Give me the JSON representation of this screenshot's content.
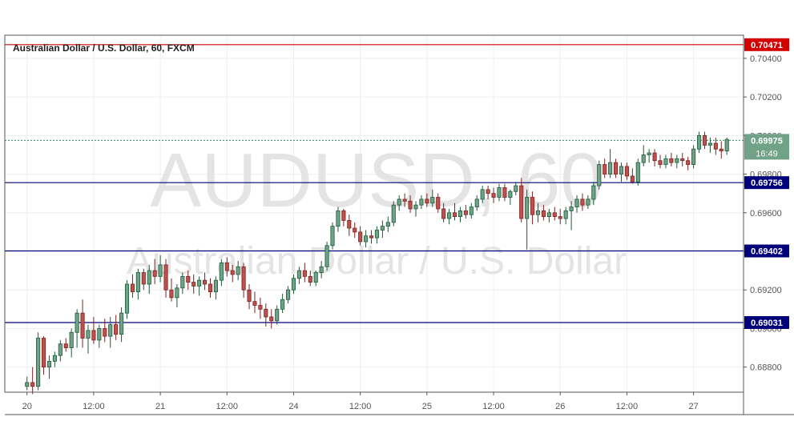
{
  "header": {
    "title": "Australian Dollar / U.S. Dollar, 60, FXCM"
  },
  "watermark": {
    "symbol": "AUDUSD, 60",
    "description": "Australian Dollar / U.S. Dollar"
  },
  "colors": {
    "up_fill": "#6fa287",
    "up_border": "#1e5a3a",
    "down_fill": "#c0504d",
    "down_border": "#7a2422",
    "resistance_line": "#d40000",
    "support_line": "#00007a",
    "price_line": "#2e8b57",
    "grid": "#eeeeee",
    "axis_text": "#555555",
    "watermark": "#e4e4e4"
  },
  "chart_data": {
    "type": "candlestick",
    "title": "Australian Dollar / U.S. Dollar, 60, FXCM",
    "ylim": [
      0.6867,
      0.7052
    ],
    "y_ticks": [
      "0.68800",
      "0.69000",
      "0.69200",
      "0.69400",
      "0.69600",
      "0.69800",
      "0.70000",
      "0.70200",
      "0.70400"
    ],
    "x_ticks": [
      "20",
      "12:00",
      "21",
      "12:00",
      "24",
      "12:00",
      "25",
      "12:00",
      "26",
      "12:00",
      "27"
    ],
    "x_tick_positions": [
      0,
      12,
      24,
      36,
      48,
      60,
      72,
      84,
      96,
      108,
      120
    ],
    "x_range": [
      -4,
      129
    ],
    "grid": true,
    "horizontal_lines": [
      {
        "value": 0.70471,
        "label": "0.70471",
        "kind": "resistance"
      },
      {
        "value": 0.69756,
        "label": "0.69756",
        "kind": "support"
      },
      {
        "value": 0.69402,
        "label": "0.69402",
        "kind": "support"
      },
      {
        "value": 0.69031,
        "label": "0.69031",
        "kind": "support"
      }
    ],
    "current_price": {
      "value": 0.69975,
      "label": "0.69975",
      "countdown": "16:49"
    },
    "ohlc": [
      [
        0.687,
        0.6875,
        0.6868,
        0.6872
      ],
      [
        0.6872,
        0.688,
        0.6866,
        0.687
      ],
      [
        0.687,
        0.6898,
        0.6868,
        0.6895
      ],
      [
        0.6895,
        0.6896,
        0.6876,
        0.688
      ],
      [
        0.688,
        0.6886,
        0.6874,
        0.6883
      ],
      [
        0.6883,
        0.6888,
        0.688,
        0.6886
      ],
      [
        0.6886,
        0.6894,
        0.6883,
        0.6892
      ],
      [
        0.6892,
        0.6895,
        0.6888,
        0.689
      ],
      [
        0.689,
        0.69,
        0.6885,
        0.6898
      ],
      [
        0.6898,
        0.691,
        0.689,
        0.6908
      ],
      [
        0.6908,
        0.6915,
        0.689,
        0.6895
      ],
      [
        0.6895,
        0.6902,
        0.6887,
        0.6899
      ],
      [
        0.6899,
        0.6906,
        0.6892,
        0.6894
      ],
      [
        0.6894,
        0.6902,
        0.689,
        0.69
      ],
      [
        0.69,
        0.6905,
        0.6893,
        0.6896
      ],
      [
        0.6896,
        0.6906,
        0.689,
        0.6902
      ],
      [
        0.6902,
        0.6907,
        0.6894,
        0.6897
      ],
      [
        0.6897,
        0.6911,
        0.6893,
        0.6908
      ],
      [
        0.6908,
        0.6925,
        0.6905,
        0.6923
      ],
      [
        0.6923,
        0.6928,
        0.6916,
        0.6919
      ],
      [
        0.6919,
        0.6931,
        0.6915,
        0.6929
      ],
      [
        0.6929,
        0.6931,
        0.692,
        0.6923
      ],
      [
        0.6923,
        0.6933,
        0.6918,
        0.693
      ],
      [
        0.693,
        0.6936,
        0.6923,
        0.6927
      ],
      [
        0.6927,
        0.6938,
        0.6924,
        0.6933
      ],
      [
        0.6933,
        0.6936,
        0.6916,
        0.692
      ],
      [
        0.692,
        0.6926,
        0.6914,
        0.6916
      ],
      [
        0.6916,
        0.6923,
        0.6911,
        0.6921
      ],
      [
        0.6921,
        0.6929,
        0.6918,
        0.6927
      ],
      [
        0.6927,
        0.693,
        0.692,
        0.6924
      ],
      [
        0.6924,
        0.6928,
        0.6918,
        0.6922
      ],
      [
        0.6922,
        0.6927,
        0.6917,
        0.6925
      ],
      [
        0.6925,
        0.6929,
        0.692,
        0.6923
      ],
      [
        0.6923,
        0.6926,
        0.6916,
        0.6919
      ],
      [
        0.6919,
        0.6927,
        0.6915,
        0.6925
      ],
      [
        0.6925,
        0.6936,
        0.6922,
        0.6934
      ],
      [
        0.6934,
        0.6937,
        0.6927,
        0.693
      ],
      [
        0.693,
        0.6933,
        0.6924,
        0.6928
      ],
      [
        0.6928,
        0.6935,
        0.6925,
        0.6932
      ],
      [
        0.6932,
        0.6934,
        0.6916,
        0.692
      ],
      [
        0.692,
        0.6923,
        0.691,
        0.6914
      ],
      [
        0.6914,
        0.6919,
        0.6908,
        0.6912
      ],
      [
        0.6912,
        0.6916,
        0.6905,
        0.691
      ],
      [
        0.691,
        0.6913,
        0.6901,
        0.6906
      ],
      [
        0.6906,
        0.691,
        0.69,
        0.6904
      ],
      [
        0.6904,
        0.6912,
        0.6902,
        0.691
      ],
      [
        0.691,
        0.6918,
        0.6908,
        0.6915
      ],
      [
        0.6915,
        0.6922,
        0.6913,
        0.692
      ],
      [
        0.692,
        0.6928,
        0.6918,
        0.6926
      ],
      [
        0.6926,
        0.6932,
        0.6923,
        0.693
      ],
      [
        0.693,
        0.6934,
        0.6924,
        0.6927
      ],
      [
        0.6927,
        0.693,
        0.6922,
        0.6924
      ],
      [
        0.6924,
        0.693,
        0.6922,
        0.6929
      ],
      [
        0.6929,
        0.6935,
        0.6926,
        0.6932
      ],
      [
        0.6932,
        0.6945,
        0.693,
        0.6943
      ],
      [
        0.6943,
        0.6955,
        0.6941,
        0.6953
      ],
      [
        0.6953,
        0.6963,
        0.695,
        0.6961
      ],
      [
        0.6961,
        0.6962,
        0.6953,
        0.6956
      ],
      [
        0.6956,
        0.6959,
        0.6948,
        0.6952
      ],
      [
        0.6952,
        0.6955,
        0.6947,
        0.695
      ],
      [
        0.695,
        0.6953,
        0.6943,
        0.6945
      ],
      [
        0.6945,
        0.6951,
        0.6942,
        0.6948
      ],
      [
        0.6948,
        0.6951,
        0.6944,
        0.6947
      ],
      [
        0.6947,
        0.6953,
        0.6944,
        0.6951
      ],
      [
        0.6951,
        0.6956,
        0.6947,
        0.6953
      ],
      [
        0.6953,
        0.6958,
        0.695,
        0.6955
      ],
      [
        0.6955,
        0.6966,
        0.6953,
        0.6964
      ],
      [
        0.6964,
        0.6969,
        0.6961,
        0.6967
      ],
      [
        0.6967,
        0.697,
        0.6963,
        0.6966
      ],
      [
        0.6966,
        0.6969,
        0.696,
        0.6962
      ],
      [
        0.6962,
        0.6966,
        0.6958,
        0.6964
      ],
      [
        0.6964,
        0.6969,
        0.6962,
        0.6967
      ],
      [
        0.6967,
        0.697,
        0.6963,
        0.6965
      ],
      [
        0.6965,
        0.6972,
        0.6963,
        0.6968
      ],
      [
        0.6968,
        0.697,
        0.696,
        0.6962
      ],
      [
        0.6962,
        0.6965,
        0.6955,
        0.6957
      ],
      [
        0.6957,
        0.6962,
        0.6954,
        0.696
      ],
      [
        0.696,
        0.6965,
        0.6956,
        0.6958
      ],
      [
        0.6958,
        0.6963,
        0.6955,
        0.6961
      ],
      [
        0.6961,
        0.6964,
        0.6957,
        0.6959
      ],
      [
        0.6959,
        0.6965,
        0.6957,
        0.6963
      ],
      [
        0.6963,
        0.6969,
        0.6961,
        0.6967
      ],
      [
        0.6967,
        0.6974,
        0.6965,
        0.6972
      ],
      [
        0.6972,
        0.6974,
        0.6967,
        0.697
      ],
      [
        0.697,
        0.6973,
        0.6965,
        0.6968
      ],
      [
        0.6968,
        0.6975,
        0.6966,
        0.6973
      ],
      [
        0.6973,
        0.6975,
        0.6966,
        0.6968
      ],
      [
        0.6968,
        0.6972,
        0.6964,
        0.6971
      ],
      [
        0.6971,
        0.6976,
        0.6969,
        0.6974
      ],
      [
        0.6974,
        0.6978,
        0.6955,
        0.6957
      ],
      [
        0.6957,
        0.6972,
        0.6941,
        0.6968
      ],
      [
        0.6968,
        0.6971,
        0.6954,
        0.6959
      ],
      [
        0.6959,
        0.6965,
        0.6955,
        0.6961
      ],
      [
        0.6961,
        0.6964,
        0.6956,
        0.6958
      ],
      [
        0.6958,
        0.6962,
        0.6955,
        0.696
      ],
      [
        0.696,
        0.6963,
        0.6956,
        0.6958
      ],
      [
        0.6958,
        0.6962,
        0.6954,
        0.6957
      ],
      [
        0.6957,
        0.6963,
        0.6954,
        0.6961
      ],
      [
        0.6961,
        0.6966,
        0.6951,
        0.6963
      ],
      [
        0.6963,
        0.6969,
        0.696,
        0.6967
      ],
      [
        0.6967,
        0.697,
        0.6961,
        0.6964
      ],
      [
        0.6964,
        0.6969,
        0.6962,
        0.6967
      ],
      [
        0.6967,
        0.6976,
        0.6964,
        0.6974
      ],
      [
        0.6974,
        0.6987,
        0.6972,
        0.6985
      ],
      [
        0.6985,
        0.6988,
        0.6978,
        0.698
      ],
      [
        0.698,
        0.6993,
        0.6978,
        0.6986
      ],
      [
        0.6986,
        0.6988,
        0.6978,
        0.698
      ],
      [
        0.698,
        0.6986,
        0.6976,
        0.6984
      ],
      [
        0.6984,
        0.6986,
        0.6977,
        0.6979
      ],
      [
        0.6979,
        0.6983,
        0.6975,
        0.6976
      ],
      [
        0.6976,
        0.6988,
        0.6974,
        0.6986
      ],
      [
        0.6986,
        0.6995,
        0.6984,
        0.699
      ],
      [
        0.699,
        0.6993,
        0.6986,
        0.6991
      ],
      [
        0.6991,
        0.6993,
        0.6984,
        0.6987
      ],
      [
        0.6987,
        0.699,
        0.6983,
        0.6985
      ],
      [
        0.6985,
        0.699,
        0.6983,
        0.6988
      ],
      [
        0.6988,
        0.6991,
        0.6984,
        0.6986
      ],
      [
        0.6986,
        0.699,
        0.6983,
        0.6988
      ],
      [
        0.6988,
        0.6991,
        0.6984,
        0.6987
      ],
      [
        0.6987,
        0.6989,
        0.6982,
        0.6985
      ],
      [
        0.6985,
        0.6995,
        0.6983,
        0.6993
      ],
      [
        0.6993,
        0.7002,
        0.6991,
        0.7
      ],
      [
        0.7,
        0.7002,
        0.6993,
        0.6995
      ],
      [
        0.6995,
        0.6999,
        0.6991,
        0.6996
      ],
      [
        0.6996,
        0.6999,
        0.699,
        0.6993
      ],
      [
        0.6993,
        0.6997,
        0.6988,
        0.6992
      ],
      [
        0.6992,
        0.6999,
        0.699,
        0.6998
      ]
    ]
  }
}
